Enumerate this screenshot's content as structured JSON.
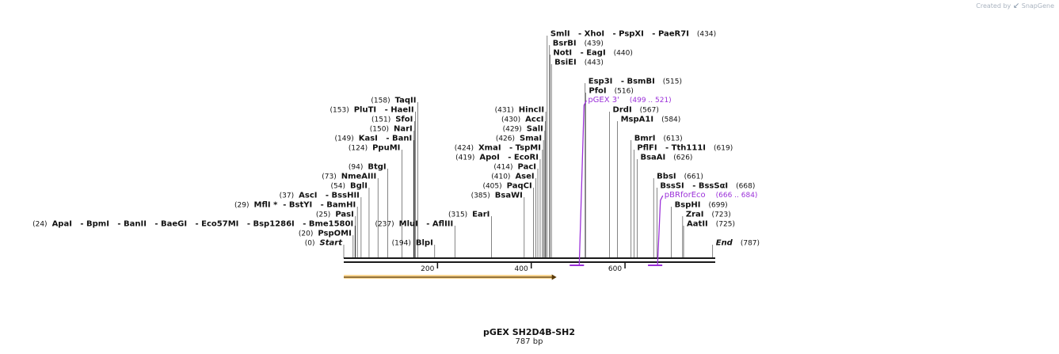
{
  "branding": {
    "created_by": "Created by",
    "product": "SnapGene"
  },
  "sequence": {
    "name": "pGEX SH2D4B-SH2",
    "length": "787 bp"
  },
  "colors": {
    "backbone": "#1a1a1a",
    "tick": "#333333",
    "feature": "#9b30d9",
    "orf_fill": "#f4b63c",
    "orf_stroke": "#c77f16"
  },
  "ruler": [
    {
      "pos": 200,
      "label": "200"
    },
    {
      "pos": 400,
      "label": "400"
    },
    {
      "pos": 600,
      "label": "600"
    }
  ],
  "orf": {
    "start": 0,
    "end": 454,
    "direction": "forward"
  },
  "features": [
    {
      "name": "pGEX 3'",
      "range": "(499 .. 521)",
      "start": 499,
      "end": 521
    },
    {
      "name": "pBRforEco",
      "range": "(666 .. 684)",
      "start": 666,
      "end": 684
    }
  ],
  "sites": [
    {
      "pos": 0,
      "num": "(0)",
      "text": "Start",
      "italic": true,
      "side": "left"
    },
    {
      "pos": 20,
      "num": "(20)",
      "text": "PspOMI",
      "side": "left"
    },
    {
      "pos": 24,
      "num": "(24)",
      "text": "ApaI   - BpmI   - BanII   - BaeGI   - Eco57MI   - Bsp1286I   - Bme1580I",
      "side": "left"
    },
    {
      "pos": 25,
      "num": "(25)",
      "text": "PasI",
      "side": "left"
    },
    {
      "pos": 29,
      "num": "(29)",
      "text": "MflI *  - BstYI   - BamHI",
      "side": "left"
    },
    {
      "pos": 37,
      "num": "(37)",
      "text": "AscI   - BssHII",
      "side": "left"
    },
    {
      "pos": 54,
      "num": "(54)",
      "text": "BglI",
      "side": "left"
    },
    {
      "pos": 73,
      "num": "(73)",
      "text": "NmeAIII",
      "side": "left"
    },
    {
      "pos": 94,
      "num": "(94)",
      "text": "BtgI",
      "side": "left"
    },
    {
      "pos": 124,
      "num": "(124)",
      "text": "PpuMI",
      "side": "left"
    },
    {
      "pos": 149,
      "num": "(149)",
      "text": "KasI   - BanI",
      "side": "left"
    },
    {
      "pos": 150,
      "num": "(150)",
      "text": "NarI",
      "side": "left"
    },
    {
      "pos": 151,
      "num": "(151)",
      "text": "SfoI",
      "side": "left"
    },
    {
      "pos": 153,
      "num": "(153)",
      "text": "PluTI   - HaeII",
      "side": "left"
    },
    {
      "pos": 158,
      "num": "(158)",
      "text": "TaqII",
      "side": "left"
    },
    {
      "pos": 194,
      "num": "(194)",
      "text": "BlpI",
      "side": "left"
    },
    {
      "pos": 237,
      "num": "(237)",
      "text": "MluI   - AflIII",
      "side": "left"
    },
    {
      "pos": 315,
      "num": "(315)",
      "text": "EarI",
      "side": "left"
    },
    {
      "pos": 385,
      "num": "(385)",
      "text": "BsaWI",
      "side": "left"
    },
    {
      "pos": 405,
      "num": "(405)",
      "text": "PaqCI",
      "side": "left"
    },
    {
      "pos": 410,
      "num": "(410)",
      "text": "AseI",
      "side": "left"
    },
    {
      "pos": 414,
      "num": "(414)",
      "text": "PacI",
      "side": "left"
    },
    {
      "pos": 419,
      "num": "(419)",
      "text": "ApoI   - EcoRI",
      "side": "left"
    },
    {
      "pos": 424,
      "num": "(424)",
      "text": "XmaI   - TspMI",
      "side": "left"
    },
    {
      "pos": 426,
      "num": "(426)",
      "text": "SmaI",
      "side": "left"
    },
    {
      "pos": 429,
      "num": "(429)",
      "text": "SalI",
      "side": "left"
    },
    {
      "pos": 430,
      "num": "(430)",
      "text": "AccI",
      "side": "left"
    },
    {
      "pos": 431,
      "num": "(431)",
      "text": "HincII",
      "side": "left"
    },
    {
      "pos": 434,
      "num": "(434)",
      "text": "SmlI   - XhoI   - PspXI   - PaeR7I",
      "side": "right"
    },
    {
      "pos": 439,
      "num": "(439)",
      "text": "BsrBI",
      "side": "right"
    },
    {
      "pos": 440,
      "num": "(440)",
      "text": "NotI   - EagI",
      "side": "right"
    },
    {
      "pos": 443,
      "num": "(443)",
      "text": "BsiEI",
      "side": "right"
    },
    {
      "pos": 515,
      "num": "(515)",
      "text": "Esp3I   - BsmBI",
      "side": "right"
    },
    {
      "pos": 516,
      "num": "(516)",
      "text": "PfoI",
      "side": "right"
    },
    {
      "pos": 567,
      "num": "(567)",
      "text": "DrdI",
      "side": "right"
    },
    {
      "pos": 584,
      "num": "(584)",
      "text": "MspA1I",
      "side": "right"
    },
    {
      "pos": 613,
      "num": "(613)",
      "text": "BmrI",
      "side": "right"
    },
    {
      "pos": 619,
      "num": "(619)",
      "text": "PflFI   - Tth111I",
      "side": "right"
    },
    {
      "pos": 626,
      "num": "(626)",
      "text": "BsaAI",
      "side": "right"
    },
    {
      "pos": 661,
      "num": "(661)",
      "text": "BbsI",
      "side": "right"
    },
    {
      "pos": 668,
      "num": "(668)",
      "text": "BssSI   - BssSαI",
      "side": "right"
    },
    {
      "pos": 699,
      "num": "(699)",
      "text": "BspHI",
      "side": "right"
    },
    {
      "pos": 723,
      "num": "(723)",
      "text": "ZraI",
      "side": "right"
    },
    {
      "pos": 725,
      "num": "(725)",
      "text": "AatII",
      "side": "right"
    },
    {
      "pos": 787,
      "num": "(787)",
      "text": "End",
      "italic": true,
      "side": "right"
    }
  ]
}
